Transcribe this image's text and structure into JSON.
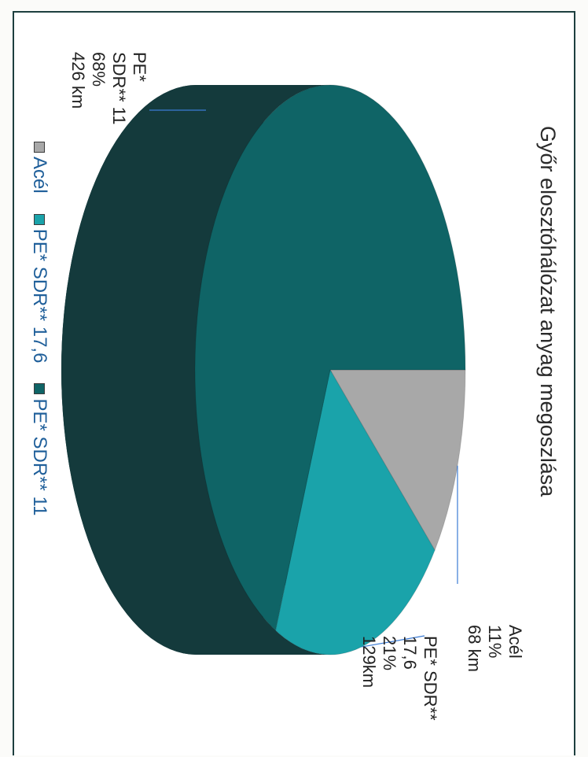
{
  "chart_data": {
    "type": "pie",
    "title": "Győr elosztóhálózat anyag megoszlása",
    "categories": [
      "Acél",
      "PE* SDR** 17,6",
      "PE* SDR** 11"
    ],
    "values": [
      68,
      129,
      426
    ],
    "percent": [
      11,
      21,
      68
    ],
    "unit": "km",
    "labels": [
      {
        "lines": [
          "Acél",
          "11%",
          "68 km"
        ]
      },
      {
        "lines": [
          "PE* SDR**",
          "17,6",
          "21%",
          "129km"
        ]
      },
      {
        "lines": [
          "PE*",
          "SDR** 11",
          "68%",
          "426 km"
        ]
      }
    ],
    "legend": {
      "placement": "bottom",
      "entries": [
        "Acél",
        "PE* SDR** 17,6",
        "PE* SDR** 11"
      ]
    },
    "colors": [
      "#a8a8a8",
      "#1aa3aa",
      "#0f6466"
    ],
    "side_colors": [
      "#727272",
      "#127a80",
      "#143a3c"
    ],
    "style": "3d",
    "rotation": "90deg clockwise"
  }
}
